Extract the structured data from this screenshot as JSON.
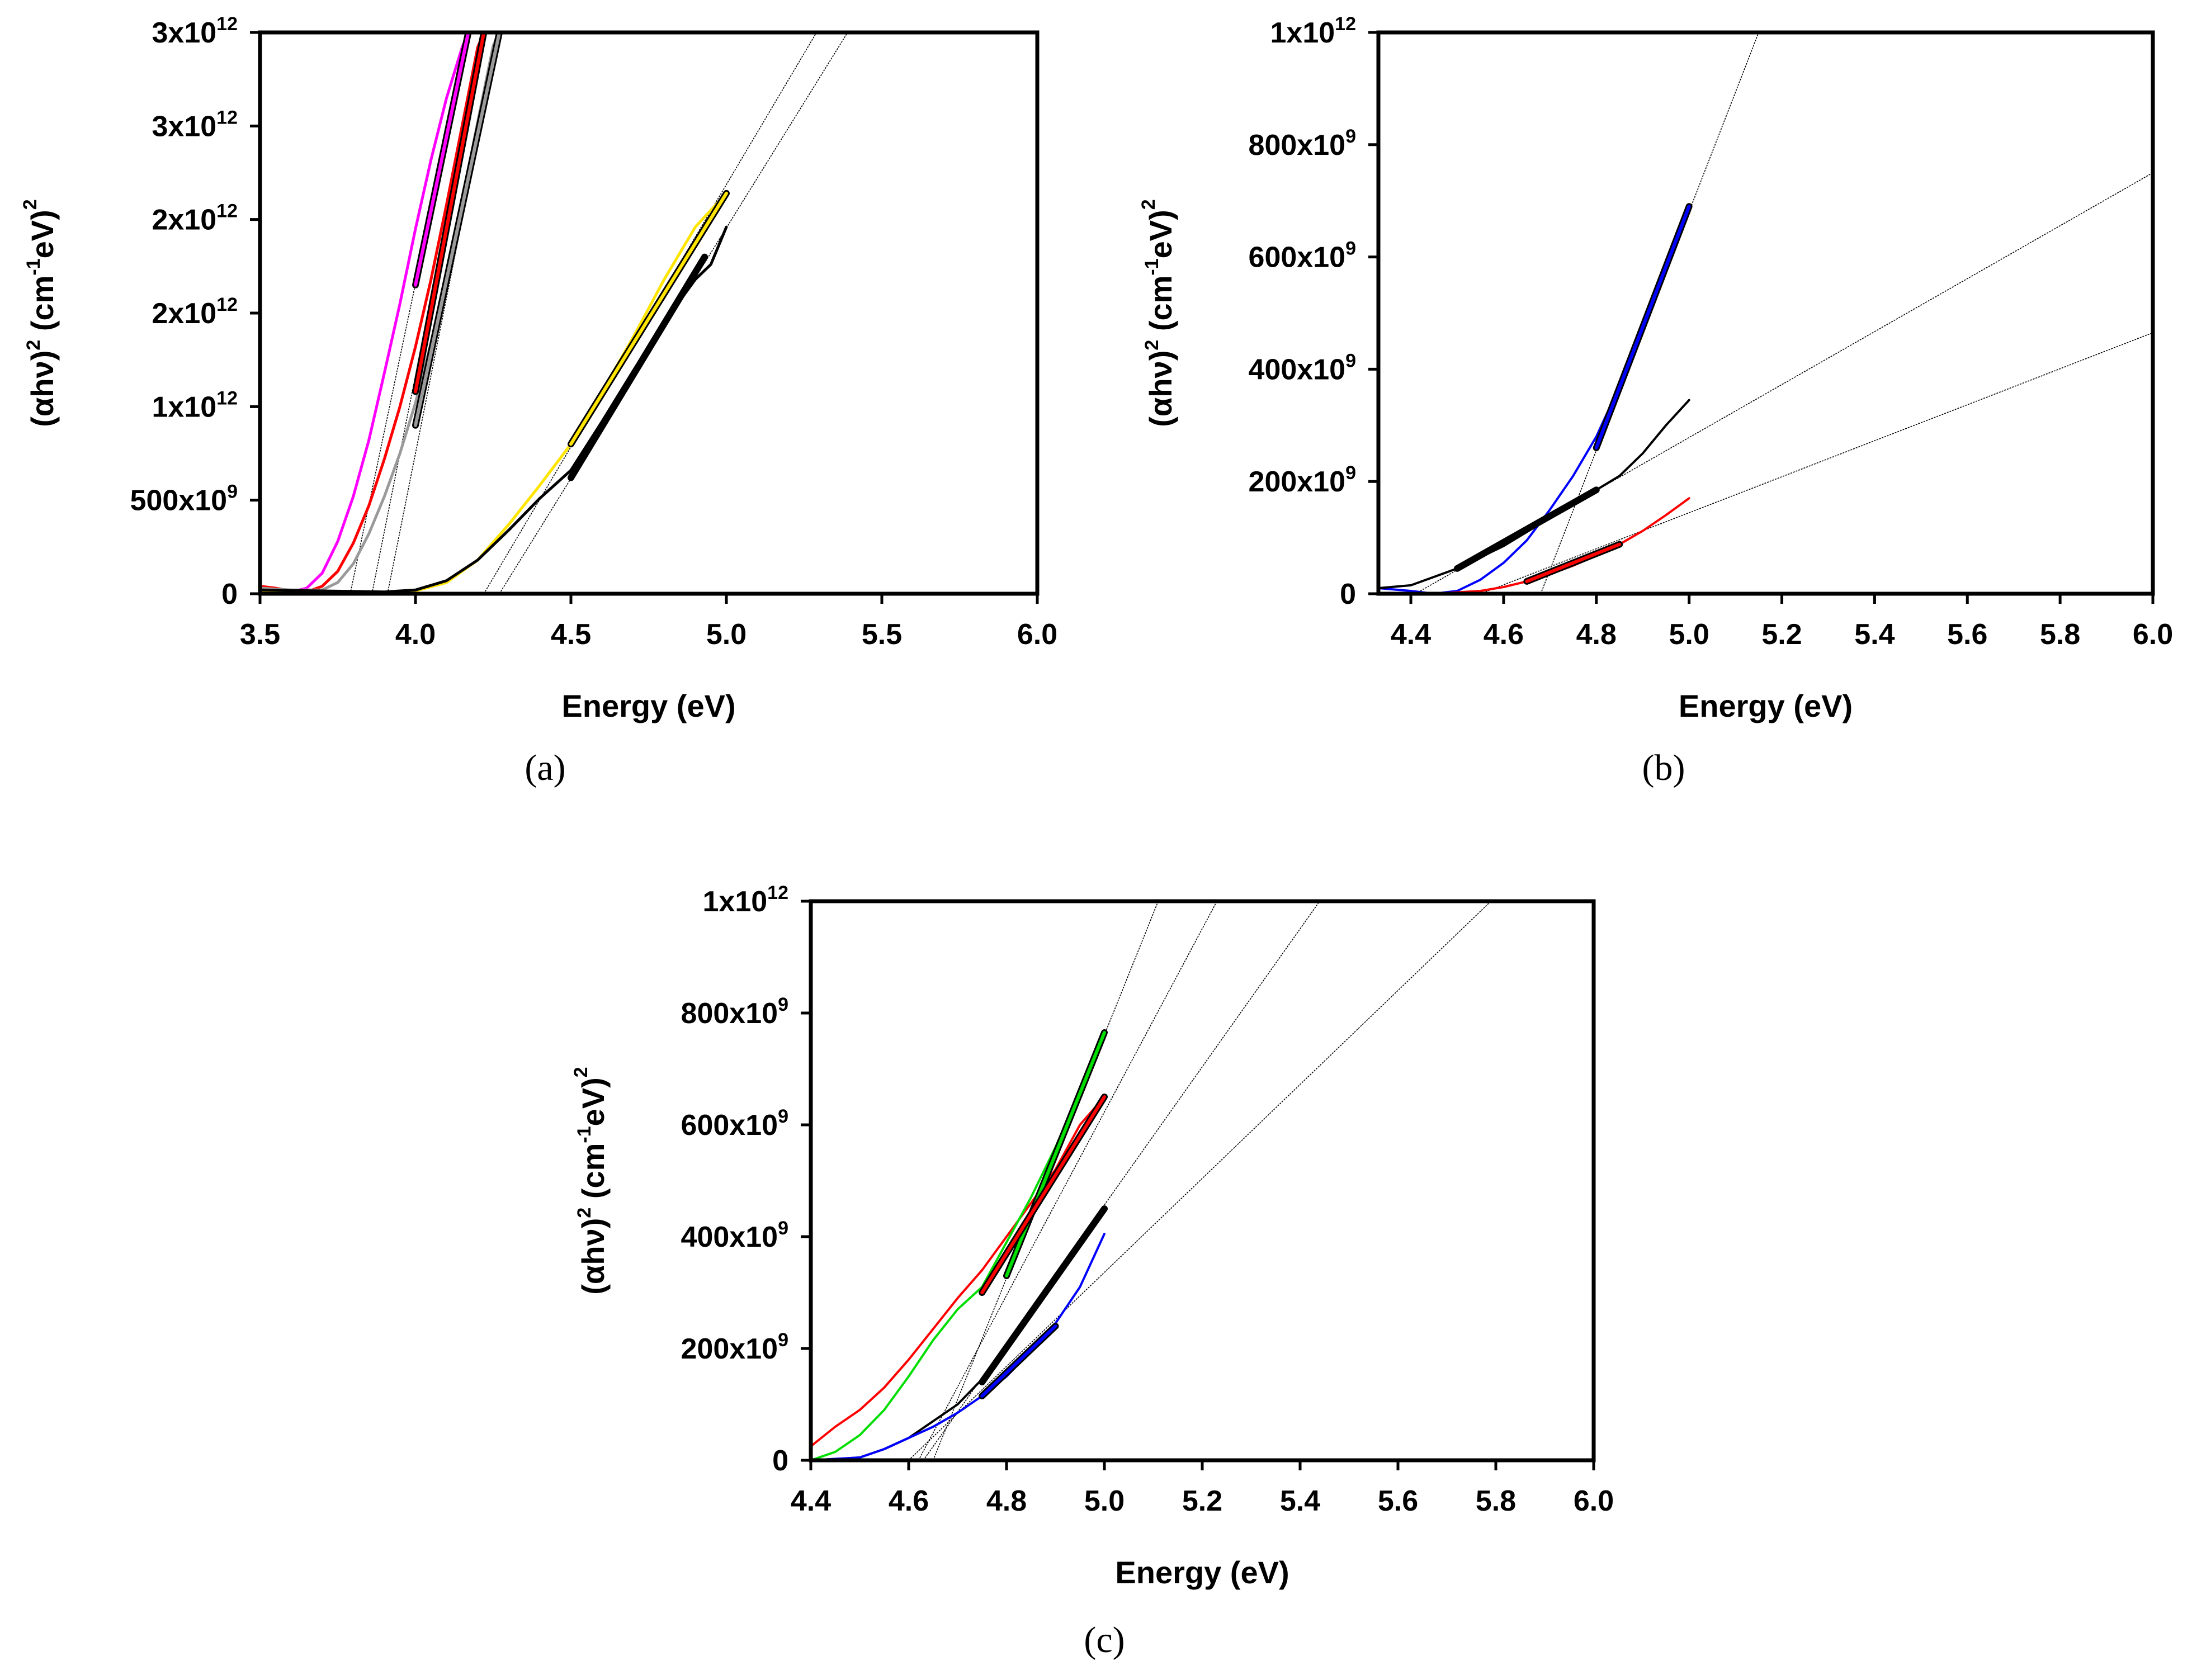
{
  "chart_data": [
    {
      "id": "a",
      "type": "line",
      "panel_label": "(a)",
      "xlabel": "Energy (eV)",
      "ylabel": {
        "base": "(αhν)",
        "pow": "2",
        "unit_open": " (cm",
        "unit_pow": "-1",
        "unit_close": "eV)",
        "unit_sq": "2"
      },
      "xlim": [
        3.5,
        6.0
      ],
      "ylim": [
        0,
        3000000000000
      ],
      "xticks": [
        3.5,
        4.0,
        4.5,
        5.0,
        5.5,
        6.0
      ],
      "xtick_labels": [
        "3.5",
        "4.0",
        "4.5",
        "5.0",
        "5.5",
        "6.0"
      ],
      "yticks": [
        0,
        500000000000,
        1000000000000,
        1500000000000,
        2000000000000,
        2500000000000,
        3000000000000
      ],
      "ytick_labels": [
        {
          "mantissa": "0",
          "exp": ""
        },
        {
          "mantissa": "500x10",
          "exp": "9"
        },
        {
          "mantissa": "1x10",
          "exp": "12"
        },
        {
          "mantissa": "2x10",
          "exp": "12"
        },
        {
          "mantissa": "2x10",
          "exp": "12"
        },
        {
          "mantissa": "3x10",
          "exp": "12"
        },
        {
          "mantissa": "3x10",
          "exp": "12"
        }
      ],
      "series": [
        {
          "name": "magenta",
          "color": "#ff00ff",
          "width": 5,
          "x": [
            3.5,
            3.55,
            3.6,
            3.65,
            3.7,
            3.75,
            3.8,
            3.85,
            3.9,
            3.95,
            4.0,
            4.05,
            4.1,
            4.15,
            4.17
          ],
          "y": [
            30000000000.0,
            20000000000.0,
            10000000000.0,
            30000000000.0,
            110000000000.0,
            280000000000.0,
            520000000000.0,
            820000000000.0,
            1180000000000.0,
            1550000000000.0,
            1950000000000.0,
            2320000000000.0,
            2650000000000.0,
            2920000000000.0,
            3000000000000.0
          ]
        },
        {
          "name": "red",
          "color": "#ff0000",
          "width": 5,
          "x": [
            3.5,
            3.55,
            3.6,
            3.65,
            3.7,
            3.75,
            3.8,
            3.85,
            3.9,
            3.95,
            4.0,
            4.05,
            4.1,
            4.15,
            4.2,
            4.22
          ],
          "y": [
            40000000000.0,
            30000000000.0,
            15000000000.0,
            10000000000.0,
            40000000000.0,
            120000000000.0,
            270000000000.0,
            470000000000.0,
            720000000000.0,
            1000000000000.0,
            1320000000000.0,
            1680000000000.0,
            2080000000000.0,
            2500000000000.0,
            2920000000000.0,
            3000000000000.0
          ]
        },
        {
          "name": "grey",
          "color": "#9a9a9a",
          "width": 5,
          "x": [
            3.5,
            3.6,
            3.7,
            3.75,
            3.8,
            3.85,
            3.9,
            3.95,
            4.0,
            4.05,
            4.1,
            4.15,
            4.2,
            4.25,
            4.27
          ],
          "y": [
            30000000000.0,
            20000000000.0,
            20000000000.0,
            60000000000.0,
            160000000000.0,
            320000000000.0,
            520000000000.0,
            750000000000.0,
            1020000000000.0,
            1340000000000.0,
            1700000000000.0,
            2100000000000.0,
            2520000000000.0,
            2930000000000.0,
            3000000000000.0
          ]
        },
        {
          "name": "yellow",
          "color": "#ffe500",
          "width": 5,
          "x": [
            3.5,
            3.7,
            3.9,
            4.0,
            4.1,
            4.2,
            4.3,
            4.4,
            4.5,
            4.6,
            4.7,
            4.8,
            4.9,
            5.0
          ],
          "y": [
            15000000000.0,
            10000000000.0,
            5000000000.0,
            15000000000.0,
            60000000000.0,
            180000000000.0,
            370000000000.0,
            580000000000.0,
            800000000000.0,
            1080000000000.0,
            1370000000000.0,
            1680000000000.0,
            1960000000000.0,
            2140000000000.0
          ]
        },
        {
          "name": "black",
          "color": "#000000",
          "width": 5,
          "x": [
            3.5,
            3.7,
            3.9,
            4.0,
            4.1,
            4.2,
            4.3,
            4.4,
            4.5,
            4.6,
            4.7,
            4.8,
            4.9,
            4.95,
            5.0
          ],
          "y": [
            20000000000.0,
            15000000000.0,
            10000000000.0,
            20000000000.0,
            70000000000.0,
            180000000000.0,
            340000000000.0,
            510000000000.0,
            660000000000.0,
            920000000000.0,
            1190000000000.0,
            1450000000000.0,
            1680000000000.0,
            1760000000000.0,
            1960000000000.0
          ]
        }
      ],
      "fit_segments": [
        {
          "color": "#ff00ff",
          "x": [
            4.0,
            4.17
          ],
          "y": [
            1650000000000.0,
            3000000000000.0
          ],
          "width": 12
        },
        {
          "color": "#ff0000",
          "x": [
            4.0,
            4.22
          ],
          "y": [
            1080000000000.0,
            3000000000000.0
          ],
          "width": 12
        },
        {
          "color": "#9a9a9a",
          "x": [
            4.0,
            4.27
          ],
          "y": [
            900000000000.0,
            3000000000000.0
          ],
          "width": 12
        },
        {
          "color": "#ffe500",
          "x": [
            4.5,
            5.0
          ],
          "y": [
            800000000000.0,
            2140000000000.0
          ],
          "width": 12
        },
        {
          "color": "#000000",
          "x": [
            4.5,
            4.93
          ],
          "y": [
            620000000000.0,
            1800000000000.0
          ],
          "width": 12
        }
      ],
      "tangent_lines": [
        {
          "x": [
            3.79,
            4.17
          ],
          "y": [
            0,
            3000000000000.0
          ]
        },
        {
          "x": [
            3.86,
            4.22
          ],
          "y": [
            0,
            3000000000000.0
          ]
        },
        {
          "x": [
            3.91,
            4.27
          ],
          "y": [
            0,
            3000000000000.0
          ]
        },
        {
          "x": [
            4.22,
            5.29
          ],
          "y": [
            0,
            3000000000000.0
          ]
        },
        {
          "x": [
            4.27,
            5.39
          ],
          "y": [
            0,
            3000000000000.0
          ]
        }
      ]
    },
    {
      "id": "b",
      "type": "line",
      "panel_label": "(b)",
      "xlabel": "Energy (eV)",
      "ylabel": {
        "base": "(αhν)",
        "pow": "2",
        "unit_open": " (cm",
        "unit_pow": "-1",
        "unit_close": "eV)",
        "unit_sq": "2"
      },
      "xlim": [
        4.33,
        6.0
      ],
      "ylim": [
        0,
        1000000000000
      ],
      "xticks": [
        4.4,
        4.6,
        4.8,
        5.0,
        5.2,
        5.4,
        5.6,
        5.8,
        6.0
      ],
      "xtick_labels": [
        "4.4",
        "4.6",
        "4.8",
        "5.0",
        "5.2",
        "5.4",
        "5.6",
        "5.8",
        "6.0"
      ],
      "yticks": [
        0,
        200000000000,
        400000000000,
        600000000000,
        800000000000,
        1000000000000
      ],
      "ytick_labels": [
        {
          "mantissa": "0",
          "exp": ""
        },
        {
          "mantissa": "200x10",
          "exp": "9"
        },
        {
          "mantissa": "400x10",
          "exp": "9"
        },
        {
          "mantissa": "600x10",
          "exp": "9"
        },
        {
          "mantissa": "800x10",
          "exp": "9"
        },
        {
          "mantissa": "1x10",
          "exp": "12"
        }
      ],
      "series": [
        {
          "name": "blue",
          "color": "#0000ff",
          "width": 4,
          "x": [
            4.33,
            4.4,
            4.45,
            4.5,
            4.55,
            4.6,
            4.65,
            4.7,
            4.75,
            4.8,
            4.85,
            4.9,
            4.95,
            5.0
          ],
          "y": [
            10000000000.0,
            5000000000.0,
            0,
            5000000000.0,
            25000000000.0,
            55000000000.0,
            95000000000.0,
            150000000000.0,
            210000000000.0,
            280000000000.0,
            370000000000.0,
            470000000000.0,
            580000000000.0,
            690000000000.0
          ]
        },
        {
          "name": "black",
          "color": "#000000",
          "width": 4,
          "x": [
            4.33,
            4.4,
            4.45,
            4.5,
            4.55,
            4.6,
            4.65,
            4.7,
            4.75,
            4.8,
            4.85,
            4.9,
            4.95,
            5.0
          ],
          "y": [
            10000000000.0,
            15000000000.0,
            30000000000.0,
            45000000000.0,
            65000000000.0,
            85000000000.0,
            110000000000.0,
            135000000000.0,
            160000000000.0,
            185000000000.0,
            210000000000.0,
            250000000000.0,
            300000000000.0,
            345000000000.0
          ]
        },
        {
          "name": "red",
          "color": "#ff0000",
          "width": 4,
          "x": [
            4.33,
            4.45,
            4.55,
            4.6,
            4.65,
            4.7,
            4.75,
            4.8,
            4.85,
            4.9,
            4.95,
            5.0
          ],
          "y": [
            0,
            0,
            5000000000.0,
            12000000000.0,
            22000000000.0,
            35000000000.0,
            50000000000.0,
            68000000000.0,
            88000000000.0,
            112000000000.0,
            140000000000.0,
            170000000000.0
          ]
        }
      ],
      "fit_segments": [
        {
          "color": "#0000ff",
          "x": [
            4.8,
            5.0
          ],
          "y": [
            260000000000.0,
            690000000000.0
          ],
          "width": 12
        },
        {
          "color": "#000000",
          "x": [
            4.5,
            4.8
          ],
          "y": [
            45000000000.0,
            185000000000.0
          ],
          "width": 12
        },
        {
          "color": "#ff0000",
          "x": [
            4.65,
            4.85
          ],
          "y": [
            22000000000.0,
            88000000000.0
          ],
          "width": 12
        }
      ],
      "tangent_lines": [
        {
          "x": [
            4.68,
            5.15
          ],
          "y": [
            0,
            1000000000000.0
          ]
        },
        {
          "x": [
            4.41,
            6.0
          ],
          "y": [
            0,
            750000000000.0
          ]
        },
        {
          "x": [
            4.55,
            6.0
          ],
          "y": [
            0,
            465000000000.0
          ]
        }
      ]
    },
    {
      "id": "c",
      "type": "line",
      "panel_label": "(c)",
      "xlabel": "Energy (eV)",
      "ylabel": {
        "base": "(αhν)",
        "pow": "2",
        "unit_open": " (cm",
        "unit_pow": "-1",
        "unit_close": "eV)",
        "unit_sq": "2"
      },
      "xlim": [
        4.4,
        6.0
      ],
      "ylim": [
        0,
        1000000000000
      ],
      "xticks": [
        4.4,
        4.6,
        4.8,
        5.0,
        5.2,
        5.4,
        5.6,
        5.8,
        6.0
      ],
      "xtick_labels": [
        "4.4",
        "4.6",
        "4.8",
        "5.0",
        "5.2",
        "5.4",
        "5.6",
        "5.8",
        "6.0"
      ],
      "yticks": [
        0,
        200000000000,
        400000000000,
        600000000000,
        800000000000,
        1000000000000
      ],
      "ytick_labels": [
        {
          "mantissa": "0",
          "exp": ""
        },
        {
          "mantissa": "200x10",
          "exp": "9"
        },
        {
          "mantissa": "400x10",
          "exp": "9"
        },
        {
          "mantissa": "600x10",
          "exp": "9"
        },
        {
          "mantissa": "800x10",
          "exp": "9"
        },
        {
          "mantissa": "1x10",
          "exp": "12"
        }
      ],
      "series": [
        {
          "name": "red",
          "color": "#ff0000",
          "width": 4,
          "x": [
            4.4,
            4.45,
            4.5,
            4.55,
            4.6,
            4.65,
            4.7,
            4.75,
            4.8,
            4.85,
            4.9,
            4.95,
            5.0
          ],
          "y": [
            25000000000.0,
            60000000000.0,
            90000000000.0,
            130000000000.0,
            180000000000.0,
            235000000000.0,
            290000000000.0,
            340000000000.0,
            400000000000.0,
            460000000000.0,
            520000000000.0,
            600000000000.0,
            650000000000.0
          ]
        },
        {
          "name": "green",
          "color": "#00dd00",
          "width": 4,
          "x": [
            4.4,
            4.45,
            4.5,
            4.55,
            4.6,
            4.65,
            4.7,
            4.75,
            4.8,
            4.85,
            4.9,
            4.95,
            5.0
          ],
          "y": [
            0,
            15000000000.0,
            45000000000.0,
            90000000000.0,
            150000000000.0,
            215000000000.0,
            270000000000.0,
            310000000000.0,
            390000000000.0,
            470000000000.0,
            560000000000.0,
            660000000000.0,
            765000000000.0
          ]
        },
        {
          "name": "black",
          "color": "#000000",
          "width": 4,
          "x": [
            4.4,
            4.5,
            4.55,
            4.6,
            4.65,
            4.7,
            4.75,
            4.8,
            4.85,
            4.9,
            4.95,
            5.0
          ],
          "y": [
            0,
            5000000000.0,
            20000000000.0,
            40000000000.0,
            70000000000.0,
            100000000000.0,
            145000000000.0,
            200000000000.0,
            265000000000.0,
            330000000000.0,
            390000000000.0,
            450000000000.0
          ]
        },
        {
          "name": "blue",
          "color": "#0000ff",
          "width": 4,
          "x": [
            4.4,
            4.5,
            4.55,
            4.6,
            4.65,
            4.7,
            4.75,
            4.8,
            4.85,
            4.9,
            4.95,
            5.0
          ],
          "y": [
            0,
            5000000000.0,
            20000000000.0,
            40000000000.0,
            60000000000.0,
            85000000000.0,
            115000000000.0,
            150000000000.0,
            195000000000.0,
            245000000000.0,
            310000000000.0,
            405000000000.0
          ]
        }
      ],
      "fit_segments": [
        {
          "color": "#00dd00",
          "x": [
            4.8,
            5.0
          ],
          "y": [
            330000000000.0,
            765000000000.0
          ],
          "width": 12
        },
        {
          "color": "#ff0000",
          "x": [
            4.75,
            5.0
          ],
          "y": [
            300000000000.0,
            650000000000.0
          ],
          "width": 12
        },
        {
          "color": "#000000",
          "x": [
            4.75,
            5.0
          ],
          "y": [
            140000000000.0,
            450000000000.0
          ],
          "width": 12
        },
        {
          "color": "#0000ff",
          "x": [
            4.75,
            4.9
          ],
          "y": [
            115000000000.0,
            240000000000.0
          ],
          "width": 12
        }
      ],
      "tangent_lines": [
        {
          "x": [
            4.65,
            5.11
          ],
          "y": [
            0,
            1000000000000.0
          ]
        },
        {
          "x": [
            4.62,
            5.23
          ],
          "y": [
            0,
            1000000000000.0
          ]
        },
        {
          "x": [
            4.63,
            5.44
          ],
          "y": [
            0,
            1000000000000.0
          ]
        },
        {
          "x": [
            4.6,
            5.79
          ],
          "y": [
            0,
            1000000000000.0
          ]
        }
      ]
    }
  ]
}
